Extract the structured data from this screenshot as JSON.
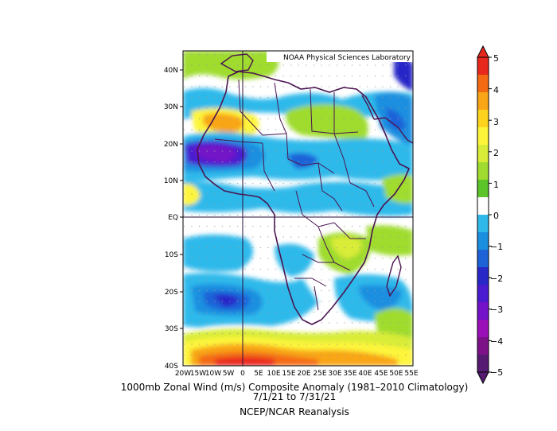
{
  "map": {
    "credit": "NOAA Physical Sciences Laboratory",
    "lat_labels": [
      "40N",
      "30N",
      "20N",
      "10N",
      "EQ",
      "10S",
      "20S",
      "30S",
      "40S"
    ],
    "lon_labels": [
      "20W",
      "15W",
      "10W",
      "5W",
      "0",
      "5E",
      "10E",
      "15E",
      "20E",
      "25E",
      "30E",
      "35E",
      "40E",
      "45E",
      "50E",
      "55E"
    ],
    "lat_range": [
      -40,
      45
    ],
    "lon_range": [
      -20,
      55
    ]
  },
  "colorbar": {
    "ticks": [
      "5",
      "4",
      "3",
      "2",
      "1",
      "0",
      "−1",
      "−2",
      "−3",
      "−4",
      "−5"
    ],
    "colors": [
      "#e8281c",
      "#f46a12",
      "#f8a516",
      "#fdd31e",
      "#fdf53a",
      "#d8ec38",
      "#9fdc2f",
      "#5bc52a",
      "#ffffff",
      "#2fb9eb",
      "#1a8fe0",
      "#1e62d8",
      "#2828c8",
      "#4a1bd0",
      "#7312c8",
      "#9a10b8",
      "#7c1188",
      "#561a72"
    ]
  },
  "caption": {
    "line1": "1000mb Zonal Wind (m/s) Composite Anomaly (1981–2010 Climatology)",
    "line2": "7/1/21  to 7/31/21",
    "line3": "NCEP/NCAR Reanalysis"
  }
}
